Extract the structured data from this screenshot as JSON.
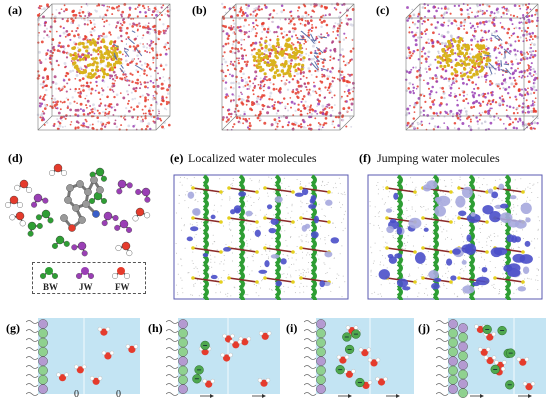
{
  "panels": {
    "a": "(a)",
    "b": "(b)",
    "c": "(c)",
    "d": "(d)",
    "e": "(e)",
    "f": "(f)",
    "g": "(g)",
    "h": "(h)",
    "i": "(i)",
    "j": "(j)"
  },
  "titles": {
    "e": "Localized water molecules",
    "f": "Jumping water molecules"
  },
  "legend_d": {
    "items": [
      "BW",
      "JW",
      "FW"
    ]
  },
  "velocity_labels_g": [
    "0",
    "0"
  ],
  "colors": {
    "bound_water": "#2e9e34",
    "jumping_water": "#9a3fb5",
    "free_water_oxygen": "#e53b2c",
    "free_water_hydrogen": "#ffffff",
    "crystal": "#d9b31c",
    "isosurface": "#4a4fc9",
    "channel_blue": "#a9d8ee",
    "particle_green": "#8fd18f",
    "particle_purple": "#b49ad1"
  }
}
